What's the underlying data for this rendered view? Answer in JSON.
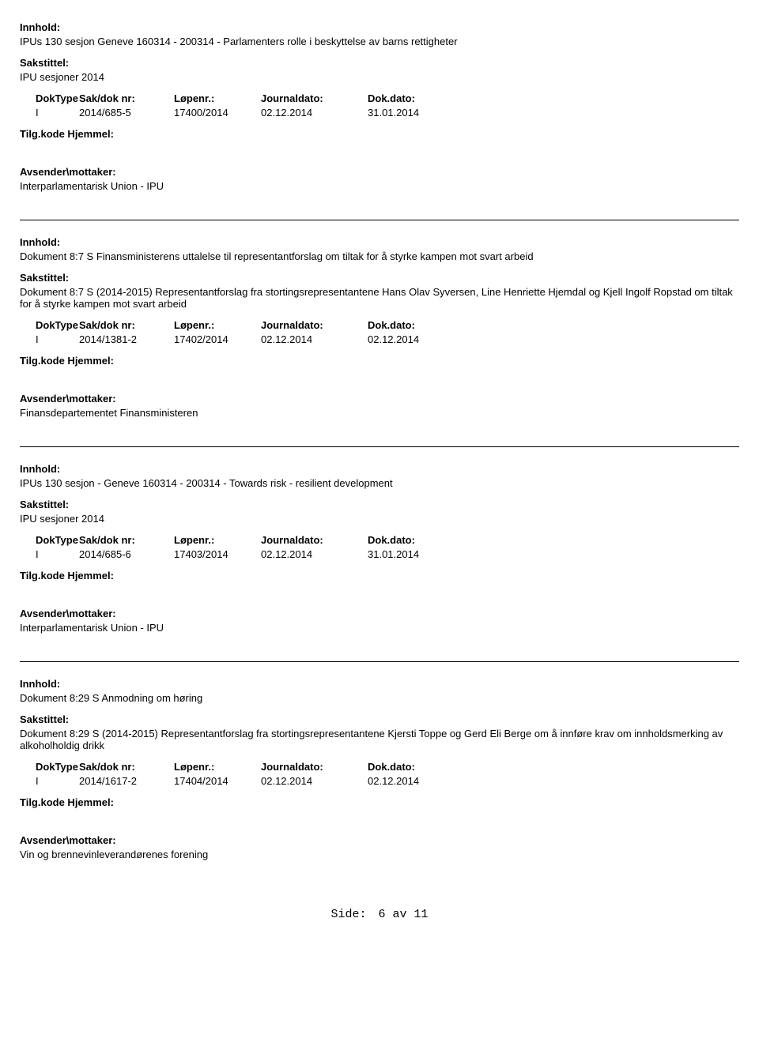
{
  "labels": {
    "innhold": "Innhold:",
    "sakstittel": "Sakstittel:",
    "doktype": "DokType",
    "sakdoknr": "Sak/dok nr:",
    "lopenr": "Løpenr.:",
    "journaldato": "Journaldato:",
    "dokdato": "Dok.dato:",
    "tilgkode": "Tilg.kode",
    "hjemmel": "Hjemmel:",
    "avsender": "Avsender\\mottaker:"
  },
  "records": [
    {
      "innhold": "IPUs 130 sesjon Geneve 160314 - 200314 - Parlamenters rolle i beskyttelse av barns rettigheter",
      "sakstittel": "IPU sesjoner 2014",
      "doktype": "I",
      "sakdoknr": "2014/685-5",
      "lopenr": "17400/2014",
      "journaldato": "02.12.2014",
      "dokdato": "31.01.2014",
      "avsender": "Interparlamentarisk Union - IPU"
    },
    {
      "innhold": "Dokument 8:7 S Finansministerens uttalelse til representantforslag om tiltak for å styrke kampen mot svart arbeid",
      "sakstittel": "Dokument 8:7 S (2014-2015) Representantforslag fra stortingsrepresentantene Hans Olav Syversen, Line Henriette Hjemdal og Kjell Ingolf Ropstad om tiltak for å styrke kampen mot svart arbeid",
      "doktype": "I",
      "sakdoknr": "2014/1381-2",
      "lopenr": "17402/2014",
      "journaldato": "02.12.2014",
      "dokdato": "02.12.2014",
      "avsender": "Finansdepartementet Finansministeren"
    },
    {
      "innhold": "IPUs 130 sesjon - Geneve 160314 - 200314 - Towards risk - resilient development",
      "sakstittel": "IPU sesjoner 2014",
      "doktype": "I",
      "sakdoknr": "2014/685-6",
      "lopenr": "17403/2014",
      "journaldato": "02.12.2014",
      "dokdato": "31.01.2014",
      "avsender": "Interparlamentarisk Union - IPU"
    },
    {
      "innhold": "Dokument 8:29 S Anmodning om høring",
      "sakstittel": "Dokument 8:29 S (2014-2015) Representantforslag fra stortingsrepresentantene Kjersti Toppe og Gerd Eli Berge om å innføre krav om innholdsmerking av alkoholholdig drikk",
      "doktype": "I",
      "sakdoknr": "2014/1617-2",
      "lopenr": "17404/2014",
      "journaldato": "02.12.2014",
      "dokdato": "02.12.2014",
      "avsender": "Vin og brennevinleverandørenes forening"
    }
  ],
  "footer": {
    "side": "Side:",
    "page": "6",
    "av": "av",
    "total": "11"
  }
}
